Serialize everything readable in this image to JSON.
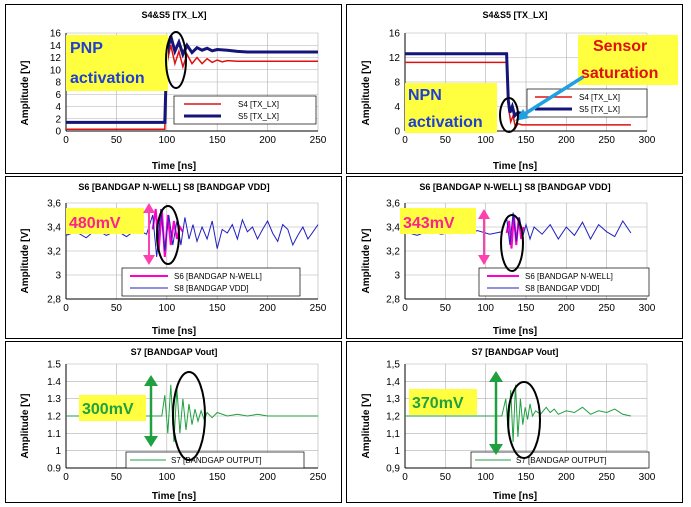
{
  "chart_data": [
    {
      "id": "p1",
      "type": "line",
      "title": "S4&S5 [TX_LX]",
      "xlabel": "Time [ns]",
      "ylabel": "Amplitude [V]",
      "xlim": [
        0,
        250
      ],
      "ylim": [
        0,
        16
      ],
      "xticks": [
        0,
        50,
        100,
        150,
        200,
        250
      ],
      "yticks": [
        0,
        2,
        4,
        6,
        8,
        10,
        12,
        14,
        16
      ],
      "xtick_labels": [
        "0",
        "50",
        "100",
        "150",
        "200",
        "250"
      ],
      "ytick_labels": [
        "0",
        "2",
        "4",
        "6",
        "8",
        "10",
        "12",
        "14",
        "16"
      ],
      "legend_position": "bottom-right",
      "series": [
        {
          "name": "S4 [TX_LX]",
          "color": "#e01010",
          "x": [
            0,
            98,
            100,
            104,
            108,
            112,
            116,
            120,
            125,
            130,
            135,
            140,
            145,
            150,
            155,
            160,
            170,
            180,
            190,
            200,
            250
          ],
          "y": [
            0.3,
            0.3,
            11,
            14,
            11,
            13,
            10.5,
            12.5,
            11,
            12,
            11,
            11.8,
            11.2,
            11.6,
            11.3,
            11.5,
            11.4,
            11.4,
            11.4,
            11.4,
            11.4
          ]
        },
        {
          "name": "S5 [TX_LX]",
          "color": "#14147a",
          "x": [
            0,
            98,
            100,
            104,
            108,
            112,
            116,
            120,
            125,
            130,
            135,
            140,
            145,
            150,
            160,
            170,
            180,
            200,
            250
          ],
          "y": [
            1.4,
            1.4,
            12.5,
            15.5,
            13,
            14.5,
            12.5,
            14,
            12.8,
            13.6,
            13.2,
            13.5,
            13.1,
            13.3,
            13.2,
            13,
            12.9,
            12.9,
            12.9
          ]
        }
      ],
      "annotations": [
        {
          "text": "PNP",
          "color": "#2040d0",
          "bg": "#ffff40"
        },
        {
          "text": "activation",
          "color": "#2040d0",
          "bg": "#ffff40"
        }
      ]
    },
    {
      "id": "p2",
      "type": "line",
      "title": "S4&S5 [TX_LX]",
      "xlabel": "Time [ns]",
      "ylabel": "Amplitude [V]",
      "xlim": [
        0,
        300
      ],
      "ylim": [
        0,
        16
      ],
      "xticks": [
        0,
        50,
        100,
        150,
        200,
        250,
        300
      ],
      "yticks": [
        0,
        4,
        8,
        12,
        16
      ],
      "xtick_labels": [
        "0",
        "50",
        "100",
        "150",
        "200",
        "250",
        "300"
      ],
      "ytick_labels": [
        "0",
        "4",
        "8",
        "12",
        "16"
      ],
      "legend_position": "bottom-right",
      "series": [
        {
          "name": "S4 [TX_LX]",
          "color": "#e01010",
          "x": [
            0,
            126,
            128,
            131,
            134,
            137,
            140,
            145,
            160,
            280
          ],
          "y": [
            11.2,
            11.2,
            4,
            1.5,
            2.5,
            0.5,
            1.2,
            1,
            1,
            1
          ]
        },
        {
          "name": "S5 [TX_LX]",
          "color": "#14147a",
          "x": [
            0,
            126,
            128,
            130,
            133,
            136,
            140,
            150,
            280
          ],
          "y": [
            12.6,
            12.6,
            5,
            3,
            4,
            2.5,
            3,
            2.8,
            2.8
          ]
        }
      ],
      "annotations": [
        {
          "text": "Sensor",
          "color": "#e01010",
          "bg": "#ffff40"
        },
        {
          "text": "saturation",
          "color": "#e01010",
          "bg": "#ffff40"
        },
        {
          "text": "NPN",
          "color": "#2040d0",
          "bg": "#ffff40"
        },
        {
          "text": "activation",
          "color": "#2040d0",
          "bg": "#ffff40"
        }
      ]
    },
    {
      "id": "p3",
      "type": "line",
      "title": "S6 [BANDGAP N-WELL] S8 [BANDGAP VDD]",
      "xlabel": "Time [ns]",
      "ylabel": "Amplitude [V]",
      "xlim": [
        0,
        250
      ],
      "ylim": [
        2.8,
        3.6
      ],
      "xticks": [
        0,
        50,
        100,
        150,
        200,
        250
      ],
      "yticks": [
        2.8,
        3.0,
        3.2,
        3.4,
        3.6
      ],
      "xtick_labels": [
        "0",
        "50",
        "100",
        "150",
        "200",
        "250"
      ],
      "ytick_labels": [
        "2,8",
        "3",
        "3,2",
        "3,4",
        "3,6"
      ],
      "legend_position": "bottom",
      "series": [
        {
          "name": "S6 [BANDGAP N-WELL]",
          "color": "#ff00c8",
          "x": [
            86,
            89,
            92,
            95,
            98,
            101,
            104,
            107,
            110,
            113,
            116
          ],
          "y": [
            3.38,
            3.55,
            3.2,
            3.55,
            3.15,
            3.5,
            3.25,
            3.45,
            3.3,
            3.4,
            3.36
          ]
        },
        {
          "name": "S8 [BANDGAP VDD]",
          "color": "#2020c0",
          "x": [
            0,
            10,
            20,
            30,
            40,
            50,
            60,
            70,
            80,
            86,
            90,
            94,
            98,
            102,
            106,
            110,
            114,
            118,
            122,
            126,
            130,
            135,
            140,
            145,
            150,
            155,
            160,
            165,
            170,
            175,
            180,
            185,
            190,
            195,
            200,
            205,
            210,
            215,
            220,
            225,
            230,
            235,
            240,
            245,
            250
          ],
          "y": [
            3.33,
            3.36,
            3.31,
            3.38,
            3.33,
            3.37,
            3.32,
            3.38,
            3.34,
            3.5,
            3.15,
            3.55,
            3.2,
            3.5,
            3.25,
            3.45,
            3.25,
            3.48,
            3.3,
            3.42,
            3.28,
            3.4,
            3.3,
            3.45,
            3.22,
            3.38,
            3.35,
            3.42,
            3.3,
            3.46,
            3.36,
            3.4,
            3.3,
            3.38,
            3.45,
            3.35,
            3.28,
            3.42,
            3.38,
            3.25,
            3.33,
            3.4,
            3.3,
            3.36,
            3.42
          ]
        }
      ],
      "annotations": [
        {
          "text": "480mV",
          "color": "#ff2090",
          "bg": "#ffff40"
        }
      ]
    },
    {
      "id": "p4",
      "type": "line",
      "title": "S6 [BANDGAP N-WELL] S8 [BANDGAP VDD]",
      "xlabel": "Time [ns]",
      "ylabel": "Amplitude [V]",
      "xlim": [
        0,
        300
      ],
      "ylim": [
        2.8,
        3.6
      ],
      "xticks": [
        0,
        50,
        100,
        150,
        200,
        250,
        300
      ],
      "yticks": [
        2.8,
        3.0,
        3.2,
        3.4,
        3.6
      ],
      "xtick_labels": [
        "0",
        "50",
        "100",
        "150",
        "200",
        "250",
        "300"
      ],
      "ytick_labels": [
        "2,8",
        "3",
        "3,2",
        "3,4",
        "3,6"
      ],
      "legend_position": "bottom",
      "series": [
        {
          "name": "S6 [BANDGAP N-WELL]",
          "color": "#ff00c8",
          "x": [
            126,
            129,
            132,
            135,
            138,
            141,
            144,
            147
          ],
          "y": [
            3.35,
            3.45,
            3.22,
            3.5,
            3.25,
            3.48,
            3.3,
            3.4
          ]
        },
        {
          "name": "S8 [BANDGAP VDD]",
          "color": "#2020c0",
          "x": [
            0,
            15,
            30,
            45,
            60,
            75,
            90,
            105,
            120,
            126,
            130,
            134,
            138,
            142,
            146,
            150,
            155,
            160,
            170,
            180,
            190,
            200,
            210,
            220,
            230,
            240,
            250,
            260,
            270,
            280
          ],
          "y": [
            3.36,
            3.33,
            3.37,
            3.34,
            3.36,
            3.35,
            3.37,
            3.34,
            3.36,
            3.48,
            3.25,
            3.52,
            3.28,
            3.48,
            3.32,
            3.42,
            3.3,
            3.4,
            3.34,
            3.42,
            3.3,
            3.4,
            3.33,
            3.44,
            3.3,
            3.42,
            3.36,
            3.32,
            3.45,
            3.35
          ]
        }
      ],
      "annotations": [
        {
          "text": "343mV",
          "color": "#ff2090",
          "bg": "#ffff40"
        }
      ]
    },
    {
      "id": "p5",
      "type": "line",
      "title": "S7 [BANDGAP Vout]",
      "xlabel": "Time [ns]",
      "ylabel": "Amplitude [V]",
      "xlim": [
        0,
        250
      ],
      "ylim": [
        0.9,
        1.5
      ],
      "xticks": [
        0,
        50,
        100,
        150,
        200,
        250
      ],
      "yticks": [
        0.9,
        1.0,
        1.1,
        1.2,
        1.3,
        1.4,
        1.5
      ],
      "xtick_labels": [
        "0",
        "50",
        "100",
        "150",
        "200",
        "250"
      ],
      "ytick_labels": [
        "0.9",
        "1",
        "1.1",
        "1.2",
        "1.3",
        "1.4",
        "1.5"
      ],
      "legend_position": "bottom",
      "series": [
        {
          "name": "S7 [BANDGAP OUTPUT]",
          "color": "#20a040",
          "x": [
            0,
            80,
            95,
            98,
            101,
            104,
            107,
            110,
            113,
            116,
            119,
            122,
            125,
            128,
            131,
            134,
            137,
            140,
            145,
            150,
            160,
            170,
            180,
            190,
            200,
            210,
            220,
            230,
            240,
            250
          ],
          "y": [
            1.2,
            1.2,
            1.2,
            1.32,
            1.1,
            1.38,
            1.05,
            1.36,
            1.1,
            1.3,
            1.12,
            1.27,
            1.15,
            1.24,
            1.17,
            1.23,
            1.18,
            1.22,
            1.19,
            1.22,
            1.2,
            1.21,
            1.2,
            1.21,
            1.2,
            1.2,
            1.2,
            1.2,
            1.2,
            1.2
          ]
        }
      ],
      "annotations": [
        {
          "text": "300mV",
          "color": "#20a040",
          "bg": "#ffff40"
        }
      ]
    },
    {
      "id": "p6",
      "type": "line",
      "title": "S7 [BANDGAP Vout]",
      "xlabel": "Time [ns]",
      "ylabel": "Amplitude [V]",
      "xlim": [
        0,
        300
      ],
      "ylim": [
        0.9,
        1.5
      ],
      "xticks": [
        0,
        50,
        100,
        150,
        200,
        250,
        300
      ],
      "yticks": [
        0.9,
        1.0,
        1.1,
        1.2,
        1.3,
        1.4,
        1.5
      ],
      "xtick_labels": [
        "0",
        "50",
        "100",
        "150",
        "200",
        "250",
        "300"
      ],
      "ytick_labels": [
        "0,9",
        "1",
        "1,1",
        "1,2",
        "1,3",
        "1,4",
        "1,5"
      ],
      "legend_position": "bottom",
      "series": [
        {
          "name": "S7 [BANDGAP OUTPUT]",
          "color": "#20a040",
          "x": [
            0,
            100,
            120,
            125,
            128,
            131,
            134,
            137,
            140,
            143,
            146,
            149,
            152,
            155,
            158,
            162,
            168,
            175,
            180,
            185,
            190,
            200,
            210,
            220,
            230,
            240,
            250,
            260,
            270,
            280
          ],
          "y": [
            1.2,
            1.2,
            1.2,
            1.3,
            1.1,
            1.35,
            1.05,
            1.38,
            1.08,
            1.3,
            1.15,
            1.25,
            1.18,
            1.27,
            1.2,
            1.23,
            1.21,
            1.25,
            1.22,
            1.24,
            1.21,
            1.23,
            1.22,
            1.25,
            1.21,
            1.23,
            1.22,
            1.24,
            1.21,
            1.2
          ]
        }
      ],
      "annotations": [
        {
          "text": "370mV",
          "color": "#20a040",
          "bg": "#ffff40"
        }
      ]
    }
  ]
}
